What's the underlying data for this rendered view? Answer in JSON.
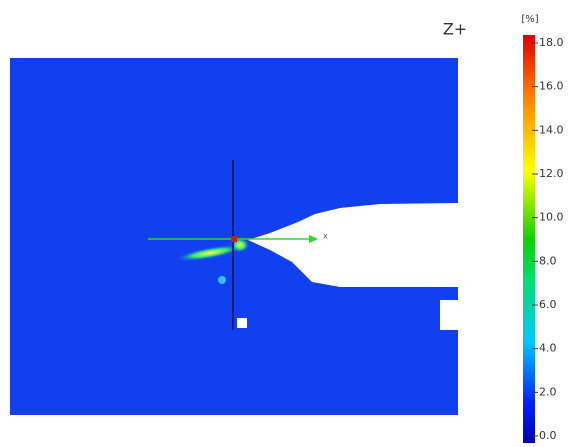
{
  "view_label": "Z+",
  "axis_label": "x",
  "colorbar": {
    "unit": "[%]",
    "lim": [
      0,
      18
    ],
    "ticks": [
      {
        "value": 0,
        "label": "0.0"
      },
      {
        "value": 2,
        "label": "2.0"
      },
      {
        "value": 4,
        "label": "4.0"
      },
      {
        "value": 6,
        "label": "6.0"
      },
      {
        "value": 8,
        "label": "8.0"
      },
      {
        "value": 10,
        "label": "10.0"
      },
      {
        "value": 12,
        "label": "12.0"
      },
      {
        "value": 14,
        "label": "14.0"
      },
      {
        "value": 16,
        "label": "16.0"
      },
      {
        "value": 18,
        "label": "18.0"
      }
    ]
  }
}
